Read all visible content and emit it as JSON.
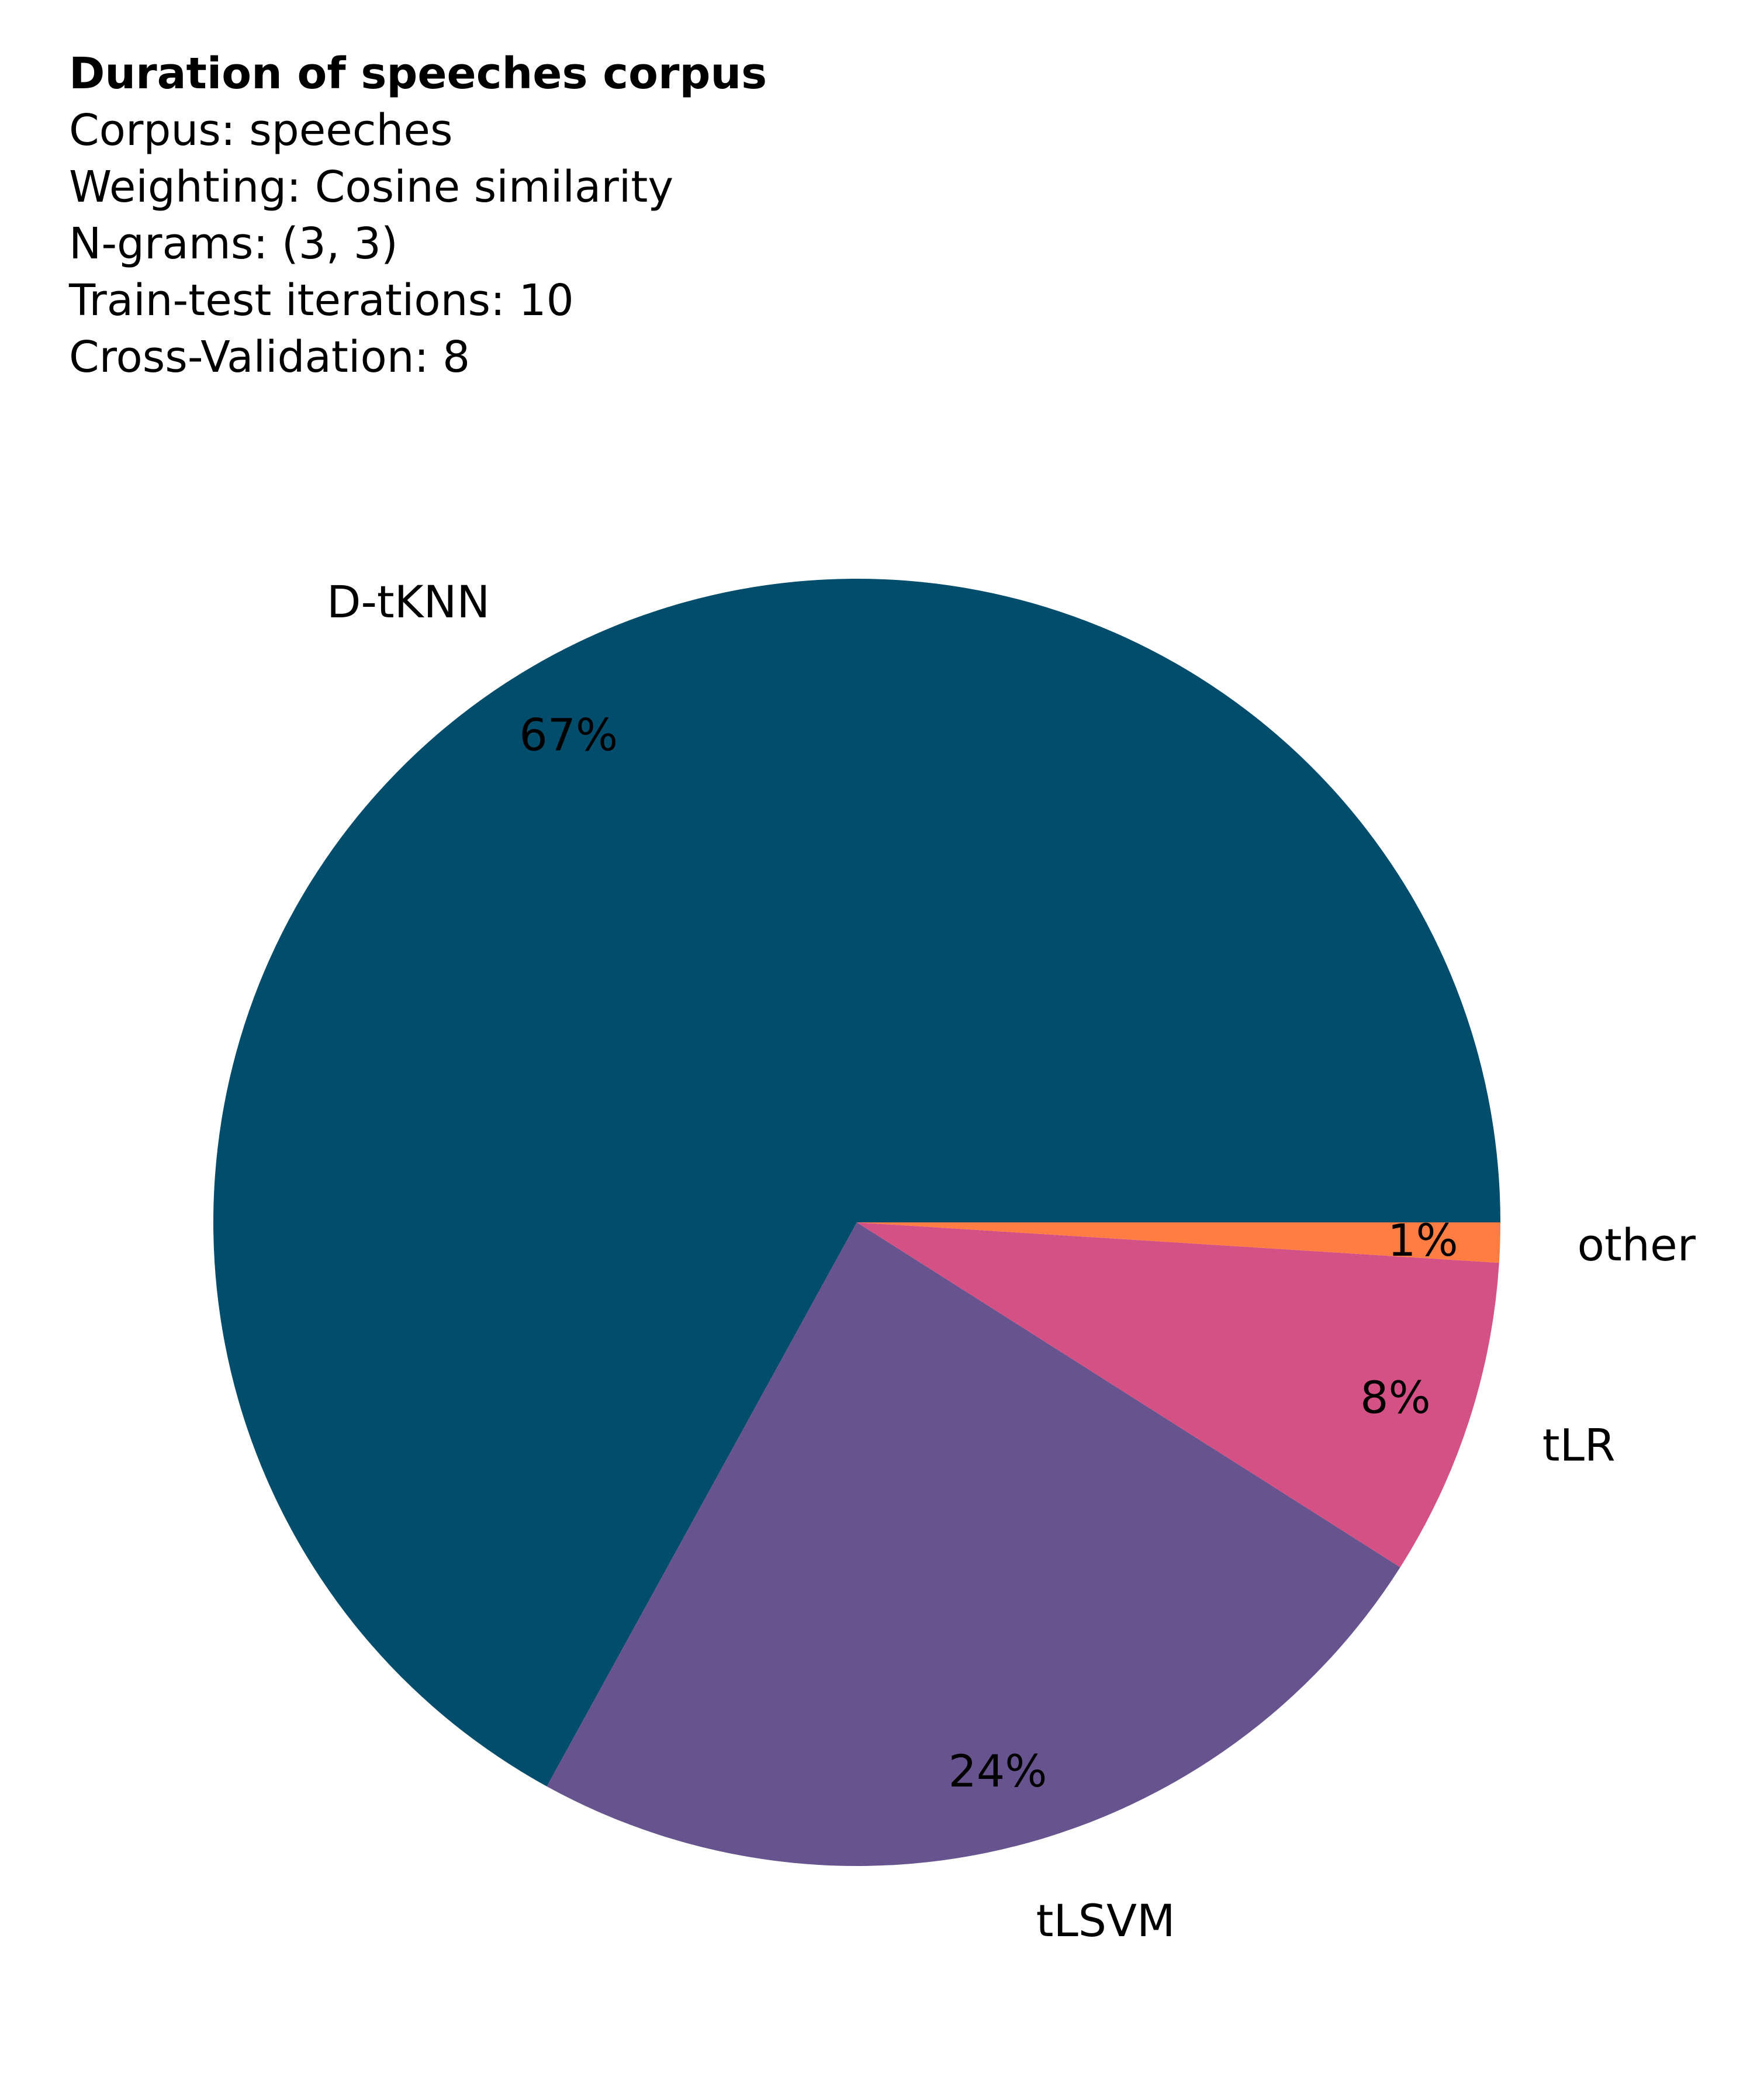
{
  "header": {
    "title": "Duration of speeches corpus",
    "lines": [
      "Corpus: speeches",
      "Weighting: Cosine similarity",
      "N-grams: (3, 3)",
      "Train-test iterations: 10",
      "Cross-Validation: 8"
    ]
  },
  "chart_data": {
    "type": "pie",
    "title": "Duration of speeches corpus",
    "start_angle_deg": 0,
    "direction": "counterclockwise",
    "slices": [
      {
        "label": "D-tKNN",
        "value": 67,
        "value_label": "67%",
        "color": "#024c6c"
      },
      {
        "label": "tLSVM",
        "value": 24,
        "value_label": "24%",
        "color": "#67548f"
      },
      {
        "label": "tLR",
        "value": 8,
        "value_label": "8%",
        "color": "#d45186"
      },
      {
        "label": "other",
        "value": 1,
        "value_label": "1%",
        "color": "#ff7c43"
      }
    ]
  }
}
